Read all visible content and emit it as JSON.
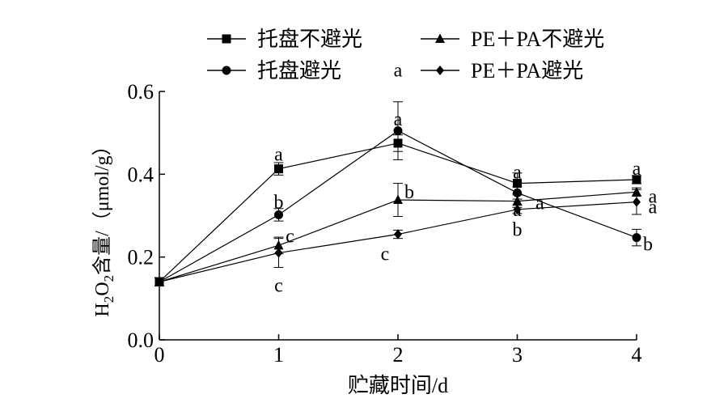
{
  "chart_data": {
    "type": "line",
    "xlabel": "贮藏时间/d",
    "ylabel_prefix": "H",
    "ylabel_sub1": "2",
    "ylabel_mid": "O",
    "ylabel_sub2": "2",
    "ylabel_suffix": "含量/（μmol/g）",
    "x": [
      0,
      1,
      2,
      3,
      4
    ],
    "xlim": [
      0,
      4
    ],
    "ylim": [
      0.0,
      0.6
    ],
    "xticks": [
      "0",
      "1",
      "2",
      "3",
      "4"
    ],
    "yticks": [
      "0.0",
      "0.2",
      "0.4",
      "0.6"
    ],
    "grid": false,
    "legend_position": "top",
    "series": [
      {
        "name": "托盘不避光",
        "marker": "square",
        "values": [
          0.14,
          0.413,
          0.475,
          0.378,
          0.387
        ],
        "errors": [
          0.01,
          0.015,
          0.02,
          0.025,
          0.01
        ],
        "letters": [
          "",
          "a",
          "a",
          "a",
          "a"
        ]
      },
      {
        "name": "托盘避光",
        "marker": "circle",
        "values": [
          0.14,
          0.302,
          0.505,
          0.355,
          0.247
        ],
        "errors": [
          0.01,
          0.015,
          0.07,
          0.015,
          0.02
        ],
        "letters": [
          "",
          "b",
          "a",
          "b",
          "b"
        ]
      },
      {
        "name": "PE＋PA不避光",
        "marker": "triangle",
        "values": [
          0.14,
          0.228,
          0.338,
          0.335,
          0.357
        ],
        "errors": [
          0.01,
          0.02,
          0.04,
          0.015,
          0.01
        ],
        "letters": [
          "",
          "c",
          "b",
          "a",
          "a"
        ]
      },
      {
        "name": "PE＋PA避光",
        "marker": "diamond",
        "values": [
          0.14,
          0.21,
          0.255,
          0.315,
          0.333
        ],
        "errors": [
          0.01,
          0.035,
          0.01,
          0.01,
          0.03
        ],
        "letters": [
          "",
          "c",
          "c",
          "a",
          "a"
        ]
      }
    ]
  }
}
